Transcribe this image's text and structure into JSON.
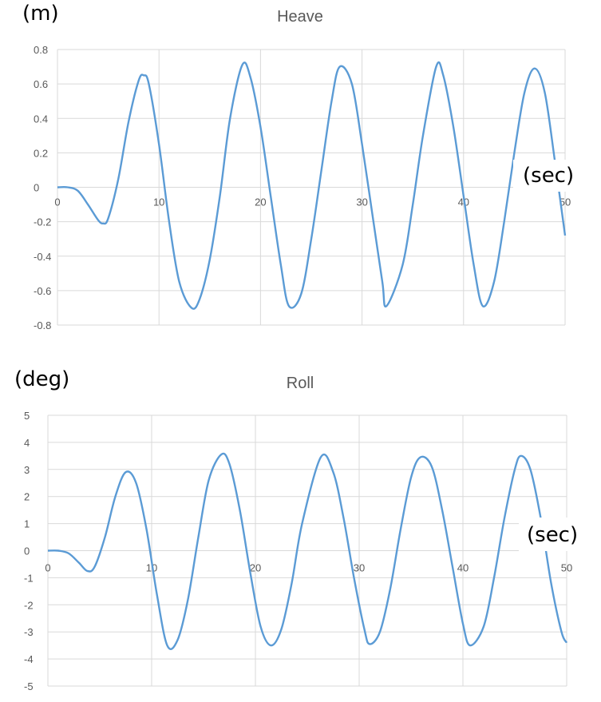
{
  "chart_data": [
    {
      "type": "line",
      "title": "Heave",
      "ylabel": "(m)",
      "xlabel": "(sec)",
      "xlim": [
        0,
        50
      ],
      "ylim": [
        -0.8,
        0.8
      ],
      "xticks": [
        0,
        10,
        20,
        30,
        40,
        50
      ],
      "yticks": [
        0.8,
        0.6,
        0.4,
        0.2,
        0,
        -0.2,
        -0.4,
        -0.6,
        -0.8
      ],
      "ytick_labels": [
        "0.8",
        "0.6",
        "0.4",
        "0.2",
        "0",
        "-0.2",
        "-0.4",
        "-0.6",
        "-0.8"
      ],
      "grid": true,
      "line_color": "#5b9bd5",
      "series": [
        {
          "x": [
            0,
            1,
            2,
            3,
            4,
            4.5,
            5,
            6,
            7,
            8,
            8.5,
            9,
            10,
            11,
            12,
            13.2,
            14,
            15,
            16,
            17,
            18.2,
            19,
            20,
            21,
            22,
            22.8,
            24,
            25,
            26,
            27,
            27.8,
            29,
            30,
            31,
            32,
            32.4,
            34,
            35,
            36,
            37.3,
            38,
            39,
            40,
            41,
            41.9,
            43,
            44,
            45,
            46,
            47,
            48,
            49,
            50
          ],
          "y": [
            0,
            0,
            -0.02,
            -0.1,
            -0.19,
            -0.21,
            -0.18,
            0.05,
            0.38,
            0.62,
            0.65,
            0.6,
            0.25,
            -0.2,
            -0.55,
            -0.7,
            -0.65,
            -0.42,
            -0.05,
            0.4,
            0.71,
            0.64,
            0.35,
            -0.05,
            -0.45,
            -0.69,
            -0.62,
            -0.3,
            0.1,
            0.5,
            0.7,
            0.6,
            0.25,
            -0.15,
            -0.55,
            -0.69,
            -0.45,
            -0.1,
            0.3,
            0.7,
            0.65,
            0.35,
            -0.05,
            -0.45,
            -0.69,
            -0.55,
            -0.2,
            0.2,
            0.55,
            0.69,
            0.55,
            0.15,
            -0.28
          ]
        }
      ]
    },
    {
      "type": "line",
      "title": "Roll",
      "ylabel": "(deg)",
      "xlabel": "(sec)",
      "xlim": [
        0,
        50
      ],
      "ylim": [
        -5,
        5
      ],
      "xticks": [
        0,
        10,
        20,
        30,
        40,
        50
      ],
      "yticks": [
        5,
        4,
        3,
        2,
        1,
        0,
        -1,
        -2,
        -3,
        -4,
        -5
      ],
      "ytick_labels": [
        "5",
        "4",
        "3",
        "2",
        "1",
        "0",
        "-1",
        "-2",
        "-3",
        "-4",
        "-5"
      ],
      "grid": true,
      "line_color": "#5b9bd5",
      "series": [
        {
          "x": [
            0,
            1,
            2,
            3,
            3.8,
            4.5,
            5.5,
            6.5,
            7.5,
            8.5,
            9.5,
            10.5,
            11.5,
            12.5,
            13.5,
            14.5,
            15.5,
            16.7,
            17.5,
            18.5,
            19.5,
            20.5,
            21.5,
            22.5,
            23.5,
            24.5,
            26.3,
            27.5,
            28.5,
            29.5,
            30.5,
            31,
            32,
            33,
            34,
            35,
            35.9,
            37,
            38,
            39,
            40,
            40.7,
            42,
            43,
            44,
            45,
            45.6,
            46.5,
            47.5,
            48.5,
            49.5,
            50
          ],
          "y": [
            0,
            0,
            -0.1,
            -0.45,
            -0.75,
            -0.6,
            0.5,
            2.0,
            2.9,
            2.5,
            0.8,
            -1.6,
            -3.5,
            -3.3,
            -1.8,
            0.5,
            2.6,
            3.55,
            3.2,
            1.5,
            -0.8,
            -2.8,
            -3.5,
            -2.9,
            -1.2,
            1.0,
            3.45,
            2.9,
            1.2,
            -1.0,
            -2.9,
            -3.45,
            -3.0,
            -1.4,
            0.8,
            2.7,
            3.45,
            3.1,
            1.5,
            -0.6,
            -2.7,
            -3.5,
            -2.8,
            -1.0,
            1.2,
            3.0,
            3.5,
            3.0,
            1.2,
            -1.2,
            -3.0,
            -3.4
          ]
        }
      ]
    }
  ]
}
